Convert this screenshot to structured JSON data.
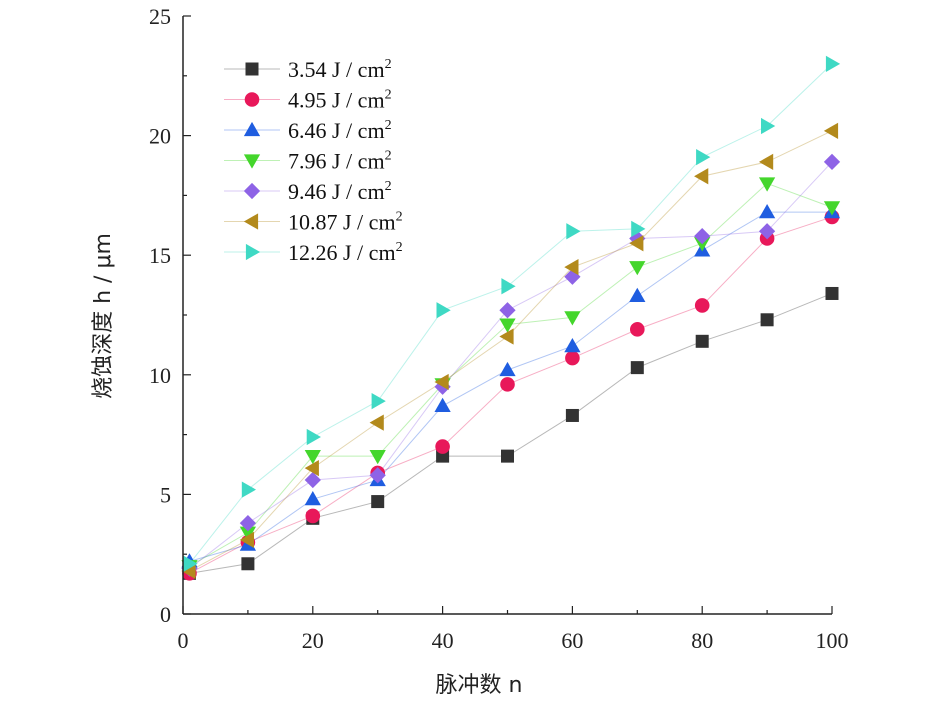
{
  "chart_data": {
    "type": "scatter",
    "xlabel": "脉冲数 n",
    "ylabel": "烧蚀深度 h / μm",
    "xlim": [
      0,
      100
    ],
    "ylim": [
      0,
      25
    ],
    "xticks": [
      0,
      20,
      40,
      60,
      80,
      100
    ],
    "yticks": [
      0,
      5,
      10,
      15,
      20,
      25
    ],
    "grid": false,
    "legend_position": "top-left",
    "x": [
      1,
      10,
      20,
      30,
      40,
      50,
      60,
      70,
      80,
      90,
      100
    ],
    "series": [
      {
        "name": "3.54 J / cm",
        "sup": "2",
        "marker": "square",
        "color": "#333333",
        "values": [
          1.7,
          2.1,
          4.0,
          4.7,
          6.6,
          6.6,
          8.3,
          10.3,
          11.4,
          12.3,
          13.4
        ]
      },
      {
        "name": "4.95 J / cm",
        "sup": "2",
        "marker": "circle",
        "color": "#e8185a",
        "values": [
          1.7,
          3.0,
          4.1,
          5.9,
          7.0,
          9.6,
          10.7,
          11.9,
          12.9,
          15.7,
          16.6
        ]
      },
      {
        "name": "6.46 J / cm",
        "sup": "2",
        "marker": "triangle-up",
        "color": "#1f5de0",
        "values": [
          2.2,
          2.9,
          4.8,
          5.6,
          8.7,
          10.2,
          11.2,
          13.3,
          15.2,
          16.8,
          16.8
        ]
      },
      {
        "name": "7.96 J / cm",
        "sup": "2",
        "marker": "triangle-down",
        "color": "#44d62c",
        "values": [
          2.0,
          3.4,
          6.6,
          6.6,
          9.6,
          12.1,
          12.4,
          14.5,
          15.5,
          18.0,
          17.0
        ]
      },
      {
        "name": "9.46 J / cm",
        "sup": "2",
        "marker": "diamond",
        "color": "#8e63e6",
        "values": [
          1.9,
          3.8,
          5.6,
          5.8,
          9.5,
          12.7,
          14.1,
          15.7,
          15.8,
          16.0,
          18.9
        ]
      },
      {
        "name": "10.87 J / cm",
        "sup": "2",
        "marker": "triangle-left",
        "color": "#b38a1c",
        "values": [
          1.8,
          3.1,
          6.1,
          8.0,
          9.7,
          11.6,
          14.5,
          15.5,
          18.3,
          18.9,
          20.2
        ]
      },
      {
        "name": "12.26 J / cm",
        "sup": "2",
        "marker": "triangle-right",
        "color": "#3fd9c4",
        "values": [
          2.1,
          5.2,
          7.4,
          8.9,
          12.7,
          13.7,
          16.0,
          16.1,
          19.1,
          20.4,
          23.0
        ]
      }
    ]
  }
}
